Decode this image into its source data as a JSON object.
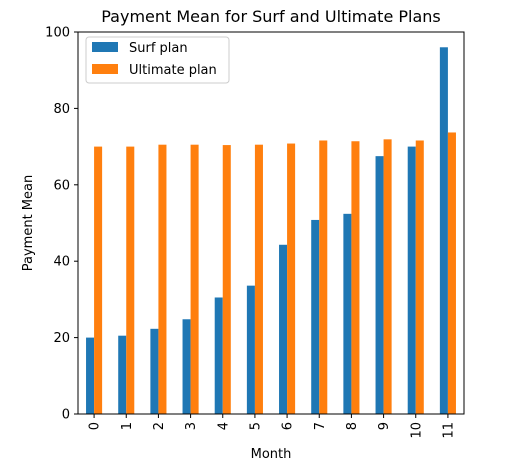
{
  "chart_data": {
    "type": "bar",
    "title": "Payment Mean for Surf and Ultimate Plans",
    "xlabel": "Month",
    "ylabel": "Payment Mean",
    "categories": [
      "0",
      "1",
      "2",
      "3",
      "4",
      "5",
      "6",
      "7",
      "8",
      "9",
      "10",
      "11"
    ],
    "series": [
      {
        "name": "Surf plan",
        "color": "#1f77b4",
        "values": [
          20.0,
          20.5,
          22.3,
          24.8,
          30.5,
          33.6,
          44.3,
          50.8,
          52.4,
          67.5,
          70.0,
          96.0
        ]
      },
      {
        "name": "Ultimate plan",
        "color": "#ff7f0e",
        "values": [
          70.0,
          70.0,
          70.5,
          70.5,
          70.4,
          70.5,
          70.8,
          71.6,
          71.4,
          71.9,
          71.6,
          73.7
        ]
      }
    ],
    "ylim": [
      0,
      100
    ],
    "yticks": [
      0,
      20,
      40,
      60,
      80,
      100
    ],
    "legend": "top-left",
    "grid": false
  }
}
